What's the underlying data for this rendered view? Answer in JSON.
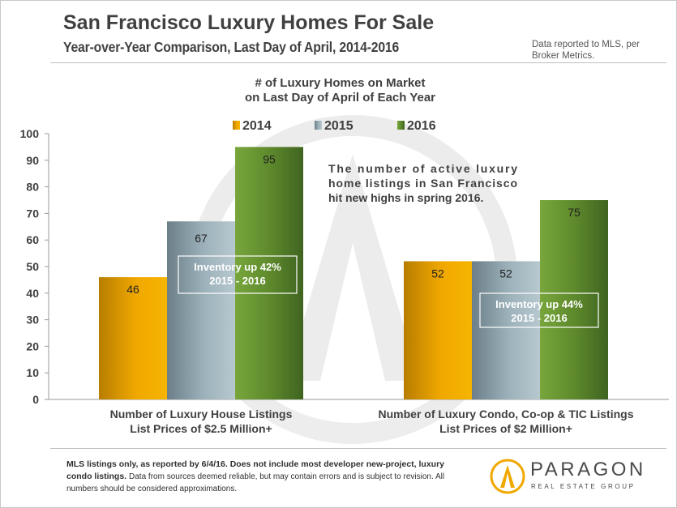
{
  "header": {
    "title": "San Francisco Luxury Homes For Sale",
    "subtitle": "Year-over-Year Comparison, Last Day of April, 2014-2016",
    "source_note": "Data reported to MLS, per Broker Metrics."
  },
  "chart_data": {
    "type": "bar",
    "title_line1": "# of Luxury Homes on Market",
    "title_line2": "on Last Day of April of Each Year",
    "categories": [
      [
        "Number of Luxury House Listings",
        "List Prices of $2.5 Million+"
      ],
      [
        "Number of Luxury Condo, Co-op & TIC Listings",
        "List Prices of $2 Million+"
      ]
    ],
    "series": [
      {
        "name": "2014",
        "values": [
          46,
          52
        ],
        "color": "#e8a000"
      },
      {
        "name": "2015",
        "values": [
          67,
          52
        ],
        "color": "#8ea3ad"
      },
      {
        "name": "2016",
        "values": [
          95,
          75
        ],
        "color": "#5f8a2e"
      }
    ],
    "ylim": [
      0,
      100
    ],
    "yticks": [
      0,
      10,
      20,
      30,
      40,
      50,
      60,
      70,
      80,
      90,
      100
    ],
    "grid": false,
    "legend_position": "top",
    "annotations": [
      {
        "text": [
          "Inventory up 42%",
          "2015 - 2016"
        ]
      },
      {
        "text": [
          "Inventory up 44%",
          "2015 - 2016"
        ]
      }
    ],
    "callout": [
      "The number of active luxury",
      "home listings in San Francisco",
      "hit new highs in spring 2016."
    ]
  },
  "footer": {
    "bold": "MLS listings only, as reported by 6/4/16. Does not include most developer new-project, luxury condo listings.",
    "normal": "Data from sources deemed reliable, but may contain errors and is subject to revision. All numbers should be considered approximations."
  },
  "logo": {
    "name": "PARAGON",
    "tagline": "REAL ESTATE GROUP"
  }
}
